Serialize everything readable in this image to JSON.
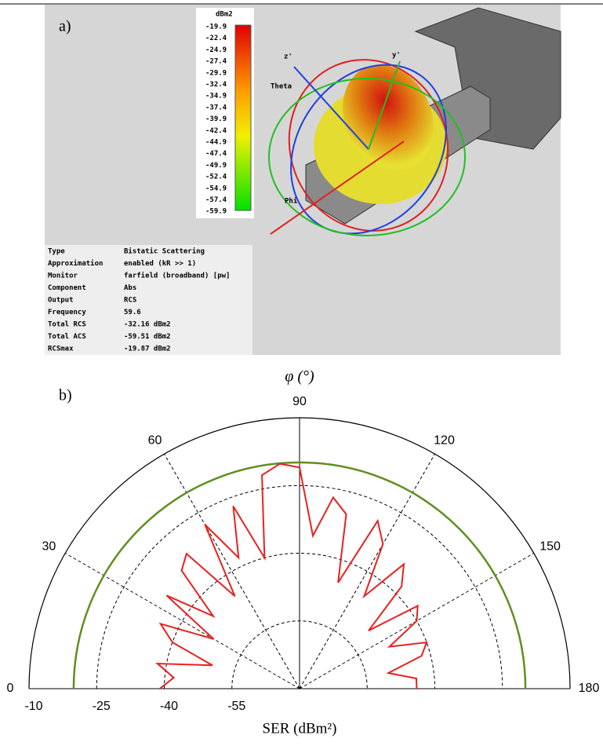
{
  "panel_a": {
    "label": "a)",
    "colorbar": {
      "unit": "dBm2",
      "labels": [
        "-19.9",
        "-22.4",
        "-24.9",
        "-27.4",
        "-29.9",
        "-32.4",
        "-34.9",
        "-37.4",
        "-39.9",
        "-42.4",
        "-44.9",
        "-47.4",
        "-49.9",
        "-52.4",
        "-54.9",
        "-57.4",
        "-59.9"
      ]
    },
    "axes": [
      "z'",
      "y'",
      "Theta",
      "Phi"
    ],
    "table": {
      "rows": [
        [
          "Type",
          "Bistatic Scattering"
        ],
        [
          "Approximation",
          "enabled (kR >> 1)"
        ],
        [
          "Monitor",
          "farfield (broadband) [pw]"
        ],
        [
          "Component",
          "Abs"
        ],
        [
          "Output",
          "RCS"
        ],
        [
          "Frequency",
          "59.6"
        ],
        [
          "Total RCS",
          "-32.16 dBm2"
        ],
        [
          "Total ACS",
          "-59.51 dBm2"
        ],
        [
          "RCSmax",
          "-19.87 dBm2"
        ]
      ]
    }
  },
  "chart_data": {
    "type": "polar",
    "label": "b)",
    "title": "φ (°)",
    "xlabel": "SER (dBm²)",
    "theta": [
      0,
      5,
      10,
      15,
      20,
      25,
      30,
      35,
      40,
      45,
      50,
      55,
      60,
      65,
      70,
      75,
      80,
      85,
      90,
      95,
      100,
      105,
      110,
      115,
      120,
      125,
      130,
      135,
      140,
      145,
      150,
      155,
      160,
      165,
      170,
      175,
      180
    ],
    "series": [
      {
        "color": "#e8211f",
        "values": [
          -39,
          -42,
          -38,
          -50,
          -40,
          -36,
          -48,
          -34,
          -45,
          -33,
          -31,
          -45,
          -28,
          -38,
          -27,
          -40,
          -22,
          -20,
          -21,
          -36,
          -27,
          -30,
          -45,
          -29,
          -33,
          -45,
          -34,
          -38,
          -50,
          -38,
          -40,
          -48,
          -40,
          -42,
          -50,
          -44,
          -44
        ]
      }
    ],
    "reference_circle": {
      "value": -19.9,
      "color": "#5f8f1f"
    },
    "rlim": [
      -70,
      -10
    ],
    "rticks": [
      -10,
      -25,
      -40,
      -55
    ],
    "thetaticks": [
      0,
      30,
      60,
      90,
      120,
      150,
      180
    ],
    "grid": true
  }
}
